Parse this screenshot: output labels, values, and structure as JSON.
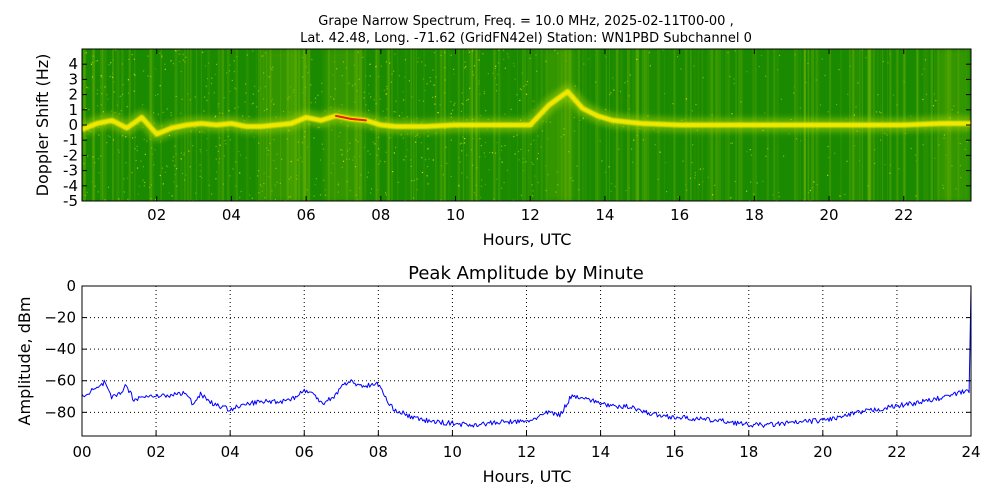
{
  "chart_data": [
    {
      "type": "heatmap",
      "title_lines": [
        "Grape Narrow Spectrum, Freq. = 10.0 MHz, 2025-02-11T00-00 ,",
        "Lat.  42.48, Long. -71.62 (GridFN42el) Station: WN1PBD Subchannel 0"
      ],
      "xlabel": "Hours, UTC",
      "ylabel": "Doppler Shift (Hz)",
      "xlim": [
        0,
        23.8
      ],
      "ylim": [
        -5,
        5
      ],
      "x_ticks": [
        2,
        4,
        6,
        8,
        10,
        12,
        14,
        16,
        18,
        20,
        22
      ],
      "x_tick_labels": [
        "02",
        "04",
        "06",
        "08",
        "10",
        "12",
        "14",
        "16",
        "18",
        "20",
        "22"
      ],
      "y_ticks": [
        4,
        3,
        2,
        1,
        0,
        -1,
        -2,
        -3,
        -4,
        -5
      ],
      "y_tick_labels": [
        "4",
        "3",
        "2",
        "1",
        "0",
        "-1",
        "-2",
        "-3",
        "-4",
        "-5"
      ],
      "colors": {
        "background": "#1a8a00",
        "mid": "#a6d000",
        "high": "#ffee00",
        "peak": "#e8200a"
      },
      "trace": {
        "name": "doppler-trace",
        "x": [
          0,
          0.4,
          0.8,
          1.2,
          1.6,
          2.0,
          2.4,
          2.8,
          3.2,
          3.6,
          4.0,
          4.4,
          4.8,
          5.2,
          5.6,
          6.0,
          6.4,
          6.8,
          7.2,
          7.6,
          8.0,
          8.4,
          8.8,
          9.2,
          10,
          11,
          12,
          12.5,
          13.0,
          13.4,
          13.8,
          14.2,
          14.6,
          15,
          16,
          17,
          18,
          19,
          20,
          21,
          22,
          23,
          23.8
        ],
        "y": [
          -0.3,
          0.1,
          0.3,
          -0.2,
          0.5,
          -0.6,
          -0.2,
          0.0,
          0.1,
          0.0,
          0.1,
          -0.1,
          -0.1,
          0.0,
          0.1,
          0.5,
          0.3,
          0.6,
          0.4,
          0.3,
          0.0,
          -0.1,
          -0.1,
          -0.1,
          0.0,
          0.0,
          0.0,
          1.3,
          2.2,
          1.1,
          0.6,
          0.3,
          0.2,
          0.1,
          0.0,
          0.0,
          0.0,
          0.0,
          0.0,
          0.0,
          0.0,
          0.1,
          0.1
        ],
        "strength": [
          0.6,
          0.8,
          0.9,
          0.7,
          0.7,
          0.6,
          0.6,
          0.6,
          0.6,
          0.6,
          0.5,
          0.5,
          0.5,
          0.5,
          0.6,
          0.9,
          0.7,
          1.0,
          1.0,
          0.9,
          0.7,
          0.4,
          0.3,
          0.3,
          0.2,
          0.2,
          0.3,
          0.6,
          0.8,
          0.9,
          0.7,
          0.6,
          0.5,
          0.4,
          0.4,
          0.4,
          0.4,
          0.4,
          0.4,
          0.4,
          0.5,
          0.6,
          0.7
        ]
      }
    },
    {
      "type": "line",
      "title": "Peak Amplitude by Minute",
      "xlabel": "Hours, UTC",
      "ylabel": "Amplitude, dBm",
      "xlim": [
        0,
        24
      ],
      "ylim": [
        -95,
        0
      ],
      "grid": true,
      "x_ticks": [
        0,
        2,
        4,
        6,
        8,
        10,
        12,
        14,
        16,
        18,
        20,
        22,
        24
      ],
      "x_tick_labels": [
        "00",
        "02",
        "04",
        "06",
        "08",
        "10",
        "12",
        "14",
        "16",
        "18",
        "20",
        "22",
        "24"
      ],
      "y_ticks": [
        0,
        -20,
        -40,
        -60,
        -80
      ],
      "y_tick_labels": [
        "0",
        "−20",
        "−40",
        "−60",
        "−80"
      ],
      "series": [
        {
          "name": "peak-amplitude",
          "color": "#0000ff",
          "x": [
            0,
            0.1,
            0.3,
            0.5,
            0.6,
            0.8,
            1.0,
            1.2,
            1.4,
            1.6,
            1.8,
            2.0,
            2.3,
            2.6,
            2.8,
            3.0,
            3.2,
            3.5,
            3.8,
            4.0,
            4.3,
            4.6,
            5.0,
            5.4,
            5.8,
            6.0,
            6.2,
            6.5,
            6.8,
            7.0,
            7.2,
            7.5,
            7.8,
            8.0,
            8.1,
            8.3,
            8.6,
            9.0,
            9.5,
            10.0,
            10.5,
            11.0,
            11.5,
            12.0,
            12.3,
            12.6,
            12.9,
            13.2,
            13.5,
            13.8,
            14.0,
            14.4,
            14.8,
            15.2,
            15.6,
            16.0,
            16.5,
            17.0,
            17.5,
            18.0,
            18.5,
            19.0,
            19.5,
            20.0,
            20.5,
            21.0,
            21.5,
            22.0,
            22.5,
            23.0,
            23.5,
            23.8,
            23.95,
            24.0
          ],
          "y": [
            -70,
            -68,
            -66,
            -64,
            -61,
            -71,
            -68,
            -63,
            -72,
            -70,
            -70,
            -69,
            -70,
            -68,
            -68,
            -75,
            -68,
            -74,
            -77,
            -78,
            -76,
            -74,
            -73,
            -73,
            -70,
            -66,
            -68,
            -74,
            -70,
            -64,
            -60,
            -63,
            -63,
            -62,
            -66,
            -76,
            -80,
            -84,
            -86,
            -87,
            -88,
            -87,
            -86,
            -86,
            -83,
            -80,
            -82,
            -70,
            -70,
            -73,
            -74,
            -77,
            -76,
            -80,
            -82,
            -83,
            -84,
            -85,
            -86,
            -88,
            -88,
            -87,
            -86,
            -85,
            -83,
            -80,
            -78,
            -76,
            -74,
            -72,
            -69,
            -67,
            -66,
            0
          ]
        }
      ]
    }
  ]
}
